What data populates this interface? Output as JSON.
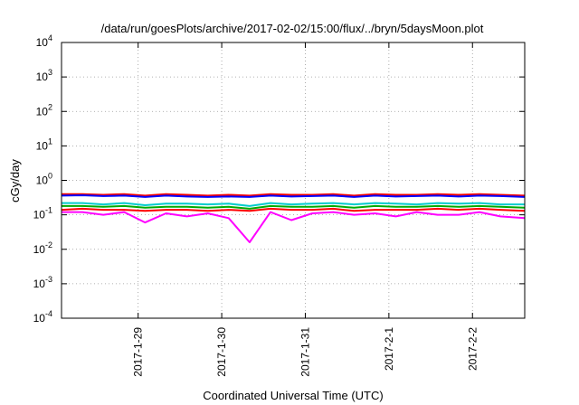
{
  "chart_data": {
    "type": "line",
    "title": "/data/run/goesPlots/archive/2017-02-02/15:00/flux/../bryn/5daysMoon.plot",
    "xlabel": "Coordinated Universal Time (UTC)",
    "ylabel": "cGy/day",
    "yscale": "log",
    "ylim": [
      0.0001,
      10000
    ],
    "y_ticks": [
      {
        "base": "10",
        "exp": "-4",
        "value": 0.0001
      },
      {
        "base": "10",
        "exp": "-3",
        "value": 0.001
      },
      {
        "base": "10",
        "exp": "-2",
        "value": 0.01
      },
      {
        "base": "10",
        "exp": "-1",
        "value": 0.1
      },
      {
        "base": "10",
        "exp": "0",
        "value": 1
      },
      {
        "base": "10",
        "exp": "1",
        "value": 10
      },
      {
        "base": "10",
        "exp": "2",
        "value": 100
      },
      {
        "base": "10",
        "exp": "3",
        "value": 1000
      },
      {
        "base": "10",
        "exp": "4",
        "value": 10000
      }
    ],
    "xlim": [
      "2017-01-28 02:00",
      "2017-02-02 15:00"
    ],
    "x_ticks": [
      {
        "label": "2017-1-29",
        "value": "2017-01-29 00:00"
      },
      {
        "label": "2017-1-30",
        "value": "2017-01-30 00:00"
      },
      {
        "label": "2017-1-31",
        "value": "2017-01-31 00:00"
      },
      {
        "label": "2017-2-1",
        "value": "2017-02-01 00:00"
      },
      {
        "label": "2017-2-2",
        "value": "2017-02-02 00:00"
      }
    ],
    "grid": true,
    "x": [
      "2017-01-28 02:00",
      "2017-01-28 08:00",
      "2017-01-28 14:00",
      "2017-01-28 20:00",
      "2017-01-29 02:00",
      "2017-01-29 08:00",
      "2017-01-29 14:00",
      "2017-01-29 20:00",
      "2017-01-30 02:00",
      "2017-01-30 08:00",
      "2017-01-30 14:00",
      "2017-01-30 20:00",
      "2017-01-31 02:00",
      "2017-01-31 08:00",
      "2017-01-31 14:00",
      "2017-01-31 20:00",
      "2017-02-01 02:00",
      "2017-02-01 08:00",
      "2017-02-01 14:00",
      "2017-02-01 20:00",
      "2017-02-02 02:00",
      "2017-02-02 08:00",
      "2017-02-02 15:00"
    ],
    "series": [
      {
        "color": "#ff0000",
        "values": [
          0.4,
          0.4,
          0.38,
          0.4,
          0.36,
          0.4,
          0.38,
          0.36,
          0.38,
          0.36,
          0.4,
          0.38,
          0.38,
          0.4,
          0.36,
          0.4,
          0.38,
          0.38,
          0.4,
          0.38,
          0.4,
          0.38,
          0.36
        ]
      },
      {
        "color": "#0000ff",
        "values": [
          0.36,
          0.37,
          0.35,
          0.36,
          0.33,
          0.36,
          0.34,
          0.33,
          0.34,
          0.33,
          0.36,
          0.34,
          0.35,
          0.36,
          0.33,
          0.36,
          0.34,
          0.35,
          0.36,
          0.34,
          0.36,
          0.35,
          0.33
        ]
      },
      {
        "color": "#00cccc",
        "values": [
          0.22,
          0.22,
          0.2,
          0.22,
          0.19,
          0.21,
          0.21,
          0.2,
          0.21,
          0.18,
          0.22,
          0.2,
          0.21,
          0.22,
          0.2,
          0.22,
          0.21,
          0.2,
          0.22,
          0.21,
          0.22,
          0.2,
          0.2
        ]
      },
      {
        "color": "#00aa00",
        "values": [
          0.18,
          0.18,
          0.17,
          0.18,
          0.16,
          0.17,
          0.17,
          0.16,
          0.17,
          0.15,
          0.18,
          0.17,
          0.17,
          0.18,
          0.16,
          0.18,
          0.17,
          0.17,
          0.18,
          0.17,
          0.18,
          0.17,
          0.16
        ]
      },
      {
        "color": "#ff0000",
        "values": [
          0.14,
          0.15,
          0.14,
          0.14,
          0.13,
          0.14,
          0.14,
          0.13,
          0.14,
          0.13,
          0.15,
          0.14,
          0.14,
          0.15,
          0.13,
          0.14,
          0.14,
          0.14,
          0.15,
          0.14,
          0.15,
          0.14,
          0.13
        ]
      },
      {
        "color": "#ff00ff",
        "values": [
          0.12,
          0.12,
          0.1,
          0.12,
          0.06,
          0.11,
          0.09,
          0.11,
          0.08,
          0.016,
          0.12,
          0.07,
          0.11,
          0.12,
          0.1,
          0.11,
          0.09,
          0.12,
          0.1,
          0.1,
          0.12,
          0.09,
          0.08
        ]
      }
    ]
  }
}
